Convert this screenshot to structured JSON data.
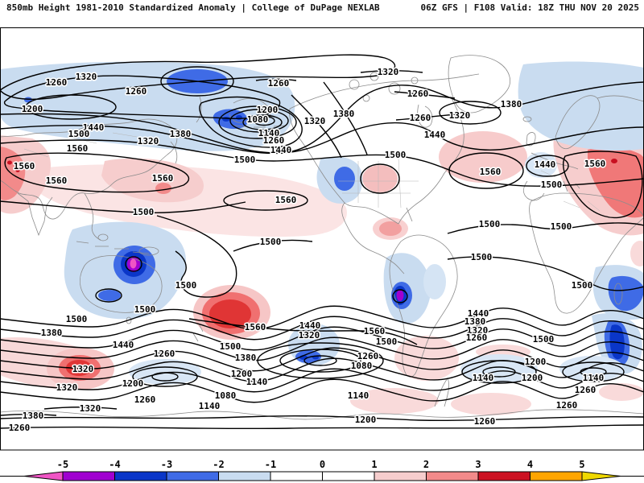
{
  "header": {
    "left": "850mb Height 1981-2010 Standardized Anomaly | College of DuPage NEXLAB",
    "right": "06Z GFS | F108 Valid: 18Z THU NOV 20 2025"
  },
  "map": {
    "field_name": "850mb Height 1981-2010 Standardized Anomaly",
    "contour_labels": [
      [
        1320,
        107,
        95
      ],
      [
        1260,
        70,
        102
      ],
      [
        1200,
        40,
        135
      ],
      [
        1260,
        169,
        113
      ],
      [
        1440,
        116,
        158
      ],
      [
        1500,
        98,
        166
      ],
      [
        1560,
        96,
        184
      ],
      [
        1320,
        184,
        175
      ],
      [
        1380,
        224,
        166
      ],
      [
        1560,
        30,
        206
      ],
      [
        1560,
        70,
        224
      ],
      [
        1560,
        202,
        221
      ],
      [
        1500,
        178,
        263
      ],
      [
        1500,
        231,
        354
      ],
      [
        1260,
        346,
        103
      ],
      [
        1320,
        482,
        89
      ],
      [
        1200,
        332,
        136
      ],
      [
        1080,
        320,
        148
      ],
      [
        1140,
        334,
        165
      ],
      [
        1260,
        340,
        174
      ],
      [
        1440,
        349,
        186
      ],
      [
        1500,
        304,
        198
      ],
      [
        1320,
        391,
        150
      ],
      [
        1380,
        427,
        141
      ],
      [
        1260,
        519,
        116
      ],
      [
        1260,
        522,
        146
      ],
      [
        1440,
        540,
        167
      ],
      [
        1500,
        491,
        192
      ],
      [
        1380,
        635,
        129
      ],
      [
        1320,
        571,
        143
      ],
      [
        1560,
        609,
        213
      ],
      [
        1440,
        677,
        204
      ],
      [
        1560,
        739,
        203
      ],
      [
        1500,
        685,
        229
      ],
      [
        1560,
        355,
        248
      ],
      [
        1500,
        336,
        300
      ],
      [
        1500,
        608,
        278
      ],
      [
        1500,
        697,
        281
      ],
      [
        1500,
        598,
        319
      ],
      [
        1500,
        723,
        354
      ],
      [
        1500,
        180,
        384
      ],
      [
        1500,
        95,
        396
      ],
      [
        1380,
        64,
        413
      ],
      [
        1440,
        153,
        428
      ],
      [
        1260,
        204,
        439
      ],
      [
        1320,
        103,
        458
      ],
      [
        1200,
        165,
        476
      ],
      [
        1320,
        83,
        481
      ],
      [
        1260,
        180,
        496
      ],
      [
        1140,
        260,
        504
      ],
      [
        1320,
        112,
        507
      ],
      [
        1380,
        41,
        516
      ],
      [
        1260,
        24,
        531
      ],
      [
        1560,
        317,
        406
      ],
      [
        1440,
        385,
        404
      ],
      [
        1320,
        384,
        416
      ],
      [
        1560,
        465,
        411
      ],
      [
        1500,
        480,
        424
      ],
      [
        1500,
        286,
        430
      ],
      [
        1380,
        305,
        444
      ],
      [
        1260,
        457,
        442
      ],
      [
        1080,
        449,
        454
      ],
      [
        1200,
        300,
        464
      ],
      [
        1140,
        319,
        474
      ],
      [
        1080,
        280,
        491
      ],
      [
        1140,
        445,
        491
      ],
      [
        1200,
        454,
        521
      ],
      [
        1440,
        594,
        389
      ],
      [
        1380,
        590,
        399
      ],
      [
        1320,
        593,
        410
      ],
      [
        1260,
        592,
        419
      ],
      [
        1500,
        675,
        421
      ],
      [
        1200,
        665,
        449
      ],
      [
        1140,
        600,
        469
      ],
      [
        1200,
        661,
        469
      ],
      [
        1140,
        737,
        469
      ],
      [
        1260,
        727,
        484
      ],
      [
        1260,
        704,
        503
      ],
      [
        1260,
        602,
        523
      ]
    ]
  },
  "colorbar": {
    "ticks": [
      "-5",
      "-4",
      "-3",
      "-2",
      "-1",
      "0",
      "1",
      "2",
      "3",
      "4",
      "5"
    ],
    "segment_colors": [
      "#A000D0",
      "#0A36C8",
      "#3F6BE6",
      "#C9DCF0",
      "#FFFFFF",
      "#FFFFFF",
      "#F6CDCD",
      "#F28A8A",
      "#CC1122",
      "#FFA500"
    ],
    "left_tip_color": "#F055C5",
    "right_tip_color": "#EFD800",
    "anomaly_palette": {
      "neg_extreme": "#F055C5",
      "neg5": "#A000D0",
      "neg4": "#0A36C8",
      "neg3": "#3F6BE6",
      "neg2": "#C9DCF0",
      "neutral": "#FFFFFF",
      "pos2": "#F6CDCD",
      "pos3": "#F28A8A",
      "pos4": "#CC1122",
      "pos5": "#FFA500",
      "pos_extreme": "#EFD800"
    }
  }
}
